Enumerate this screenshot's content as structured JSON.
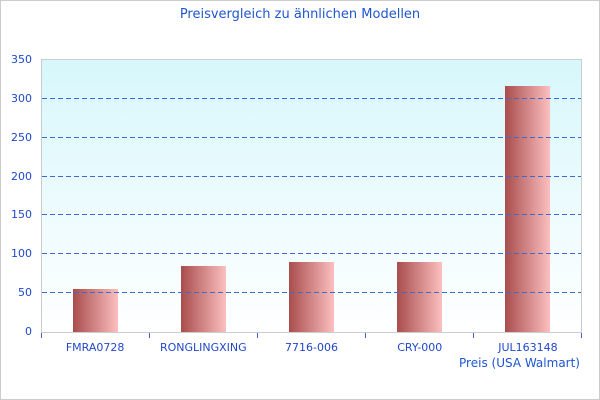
{
  "chart_data": {
    "type": "bar",
    "title": "Preisvergleich zu ähnlichen Modellen",
    "xlabel": "Preis (USA Walmart)",
    "ylabel": "",
    "categories": [
      "FMRA0728",
      "RONGLINGXING",
      "7716-006",
      "CRY-000",
      "JUL163148"
    ],
    "values": [
      55,
      85,
      90,
      90,
      316
    ],
    "ylim": [
      0,
      350
    ],
    "yticks": [
      0,
      50,
      100,
      150,
      200,
      250,
      300,
      350
    ],
    "grid": "horizontal-dashed",
    "legend": "none"
  },
  "colors": {
    "title_text": "#1e56cf",
    "axis_text": "#2148c8",
    "gridline": "#3a6bcd",
    "tick": "#3a6bcd",
    "plot_bg_top": "#d7f7fb",
    "plot_bg_bottom": "#ffffff",
    "plot_border": "#cccccc",
    "frame_border": "#cccccc",
    "bar_dark": "#a94d4d",
    "bar_light": "#fcbfbf"
  }
}
